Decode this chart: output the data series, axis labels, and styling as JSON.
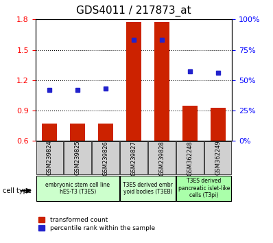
{
  "title": "GDS4011 / 217873_at",
  "samples": [
    "GSM239824",
    "GSM239825",
    "GSM239826",
    "GSM239827",
    "GSM239828",
    "GSM362248",
    "GSM362249"
  ],
  "transformed_count": [
    0.775,
    0.775,
    0.775,
    1.775,
    1.775,
    0.945,
    0.925
  ],
  "percentile_rank": [
    0.42,
    0.42,
    0.43,
    0.83,
    0.83,
    0.57,
    0.56
  ],
  "ylim_left": [
    0.6,
    1.8
  ],
  "ylim_right": [
    0,
    100
  ],
  "yticks_left": [
    0.6,
    0.9,
    1.2,
    1.5,
    1.8
  ],
  "yticks_right": [
    0,
    25,
    50,
    75,
    100
  ],
  "bar_color": "#cc2200",
  "dot_color": "#2222cc",
  "cell_groups": [
    {
      "label": "embryonic stem cell line\nhES-T3 (T3ES)",
      "indices": [
        0,
        1,
        2
      ],
      "color": "#ccffcc"
    },
    {
      "label": "T3ES derived embr\nyoid bodies (T3EB)",
      "indices": [
        3,
        4
      ],
      "color": "#ccffcc"
    },
    {
      "label": "T3ES derived\npancreatic islet-like\ncells (T3pi)",
      "indices": [
        5,
        6
      ],
      "color": "#aaffaa"
    }
  ],
  "legend_items": [
    {
      "label": "transformed count",
      "color": "#cc2200"
    },
    {
      "label": "percentile rank within the sample",
      "color": "#2222cc"
    }
  ]
}
